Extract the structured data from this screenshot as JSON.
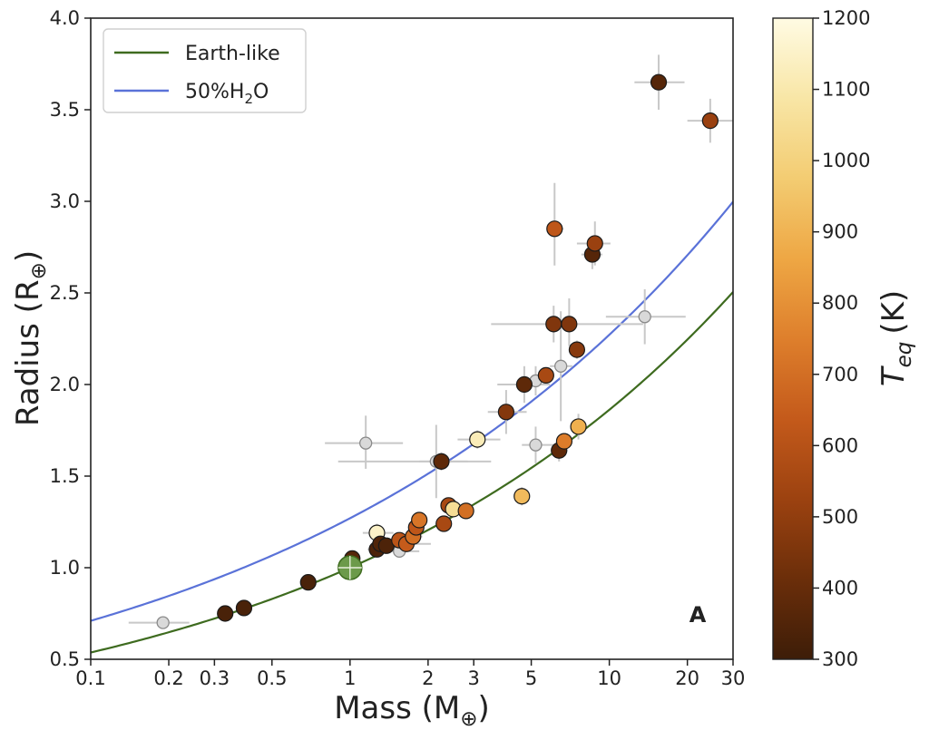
{
  "chart_data": {
    "type": "scatter",
    "panel_label": "A",
    "xlabel": {
      "main": "Mass (M",
      "sub": "⊕",
      "close": ")"
    },
    "ylabel": {
      "main": "Radius (R",
      "sub": "⊕",
      "close": ")"
    },
    "xscale": "log",
    "xlim": [
      0.1,
      30
    ],
    "ylim": [
      0.5,
      4.0
    ],
    "xticks": [
      {
        "value": 0.1,
        "label": "0.1"
      },
      {
        "value": 0.2,
        "label": "0.2"
      },
      {
        "value": 0.3,
        "label": "0.3"
      },
      {
        "value": 0.5,
        "label": "0.5"
      },
      {
        "value": 1,
        "label": "1"
      },
      {
        "value": 2,
        "label": "2"
      },
      {
        "value": 3,
        "label": "3"
      },
      {
        "value": 5,
        "label": "5"
      },
      {
        "value": 10,
        "label": "10"
      },
      {
        "value": 20,
        "label": "20"
      },
      {
        "value": 30,
        "label": "30"
      }
    ],
    "yticks": [
      {
        "value": 0.5,
        "label": "0.5"
      },
      {
        "value": 1.0,
        "label": "1.0"
      },
      {
        "value": 1.5,
        "label": "1.5"
      },
      {
        "value": 2.0,
        "label": "2.0"
      },
      {
        "value": 2.5,
        "label": "2.5"
      },
      {
        "value": 3.0,
        "label": "3.0"
      },
      {
        "value": 3.5,
        "label": "3.5"
      },
      {
        "value": 4.0,
        "label": "4.0"
      }
    ],
    "legend_position": "top-left",
    "models": [
      {
        "name": "Earth-like",
        "label_parts": [
          "Earth-like"
        ],
        "color": "#3e6b1f",
        "coef": 1.0,
        "exp": 0.27
      },
      {
        "name": "50%H2O",
        "label_parts": [
          "50%H",
          "2",
          "O"
        ],
        "color": "#5a72d8",
        "coef": 1.27,
        "exp": 0.2525
      }
    ],
    "colorbar": {
      "label_main": "T",
      "label_sub": "eq",
      "label_unit": "(K)",
      "min": 300,
      "max": 1200,
      "ticks": [
        {
          "value": 300,
          "label": "300"
        },
        {
          "value": 400,
          "label": "400"
        },
        {
          "value": 500,
          "label": "500"
        },
        {
          "value": 600,
          "label": "600"
        },
        {
          "value": 700,
          "label": "700"
        },
        {
          "value": 800,
          "label": "800"
        },
        {
          "value": 900,
          "label": "900"
        },
        {
          "value": 1000,
          "label": "1000"
        },
        {
          "value": 1100,
          "label": "1100"
        },
        {
          "value": 1200,
          "label": "1200"
        }
      ],
      "stops": [
        "#3d1d08",
        "#6b2e0a",
        "#9c4210",
        "#c45a1b",
        "#de7f2c",
        "#eea744",
        "#f3cc72",
        "#f8e6a6",
        "#fffbe3"
      ]
    },
    "earth": {
      "x": 1.0,
      "y": 1.0,
      "color": "#6c9a4a"
    },
    "points": [
      {
        "x": 0.19,
        "y": 0.7,
        "teq": null,
        "xerr": [
          0.05,
          0.05
        ],
        "yerr": [
          0.03,
          0.03
        ]
      },
      {
        "x": 0.33,
        "y": 0.75,
        "teq": 330,
        "xerr": [
          0.02,
          0.02
        ],
        "yerr": [
          0.02,
          0.02
        ]
      },
      {
        "x": 0.39,
        "y": 0.78,
        "teq": 330
      },
      {
        "x": 0.69,
        "y": 0.92,
        "teq": 330
      },
      {
        "x": 1.02,
        "y": 1.05,
        "teq": 360
      },
      {
        "x": 1.15,
        "y": 1.68,
        "teq": null,
        "xerr": [
          0.35,
          0.45
        ],
        "yerr": [
          0.14,
          0.15
        ]
      },
      {
        "x": 1.27,
        "y": 1.19,
        "teq": 1150,
        "xerr": [
          0.15,
          0.2
        ],
        "yerr": [
          0.05,
          0.05
        ]
      },
      {
        "x": 1.27,
        "y": 1.1,
        "teq": 340,
        "xerr": [
          0.1,
          0.15
        ],
        "yerr": [
          0.03,
          0.03
        ]
      },
      {
        "x": 1.31,
        "y": 1.13,
        "teq": 350,
        "xerr": [
          0.1,
          0.1
        ],
        "yerr": [
          0.03,
          0.03
        ]
      },
      {
        "x": 1.38,
        "y": 1.12,
        "teq": 340
      },
      {
        "x": 1.55,
        "y": 1.09,
        "teq": null,
        "xerr": [
          0.2,
          0.3
        ],
        "yerr": [
          0.03,
          0.03
        ]
      },
      {
        "x": 1.55,
        "y": 1.15,
        "teq": 610
      },
      {
        "x": 1.65,
        "y": 1.13,
        "teq": 640,
        "xerr": [
          0.3,
          0.4
        ],
        "yerr": [
          0.04,
          0.04
        ]
      },
      {
        "x": 1.75,
        "y": 1.17,
        "teq": 700,
        "xerr": [
          0.15,
          0.15
        ],
        "yerr": [
          0.03,
          0.03
        ]
      },
      {
        "x": 1.8,
        "y": 1.22,
        "teq": 620
      },
      {
        "x": 1.85,
        "y": 1.26,
        "teq": 720
      },
      {
        "x": 2.15,
        "y": 1.58,
        "teq": null,
        "xerr": [
          1.25,
          1.35
        ],
        "yerr": [
          0.2,
          0.2
        ]
      },
      {
        "x": 2.25,
        "y": 1.58,
        "teq": 380,
        "xerr": [
          0.4,
          0.6
        ],
        "yerr": [
          0.05,
          0.05
        ]
      },
      {
        "x": 2.3,
        "y": 1.24,
        "teq": 560
      },
      {
        "x": 2.4,
        "y": 1.34,
        "teq": 560
      },
      {
        "x": 2.5,
        "y": 1.32,
        "teq": 1050
      },
      {
        "x": 2.8,
        "y": 1.31,
        "teq": 700
      },
      {
        "x": 3.1,
        "y": 1.7,
        "teq": 1120,
        "xerr": [
          0.5,
          0.7
        ],
        "yerr": [
          0.05,
          0.05
        ]
      },
      {
        "x": 4.0,
        "y": 1.85,
        "teq": 470,
        "xerr": [
          0.6,
          0.8
        ],
        "yerr": [
          0.12,
          0.12
        ]
      },
      {
        "x": 4.6,
        "y": 1.39,
        "teq": 920,
        "xerr": [
          0.3,
          0.3
        ],
        "yerr": [
          0.05,
          0.05
        ]
      },
      {
        "x": 4.7,
        "y": 2.0,
        "teq": 380,
        "xerr": [
          1.0,
          1.2
        ],
        "yerr": [
          0.1,
          0.1
        ]
      },
      {
        "x": 5.2,
        "y": 1.67,
        "teq": null,
        "xerr": [
          0.6,
          1.0
        ],
        "yerr": [
          0.1,
          0.1
        ]
      },
      {
        "x": 5.2,
        "y": 2.02,
        "teq": null,
        "xerr": [
          0.5,
          0.5
        ],
        "yerr": [
          0.08,
          0.08
        ]
      },
      {
        "x": 5.7,
        "y": 2.05,
        "teq": 560
      },
      {
        "x": 6.15,
        "y": 2.85,
        "teq": 620,
        "xerr": [
          0.4,
          0.5
        ],
        "yerr": [
          0.2,
          0.25
        ]
      },
      {
        "x": 6.1,
        "y": 2.33,
        "teq": 460,
        "xerr": [
          2.6,
          7.4
        ],
        "yerr": [
          0.1,
          0.1
        ]
      },
      {
        "x": 6.4,
        "y": 1.64,
        "teq": 380,
        "xerr": [
          0.4,
          0.5
        ],
        "yerr": [
          0.06,
          0.06
        ]
      },
      {
        "x": 6.5,
        "y": 2.1,
        "teq": null,
        "xerr": [
          0.6,
          0.7
        ],
        "yerr": [
          0.3,
          0.3
        ]
      },
      {
        "x": 6.7,
        "y": 1.69,
        "teq": 740
      },
      {
        "x": 7.0,
        "y": 2.33,
        "teq": 460,
        "xerr": [
          0.6,
          0.6
        ],
        "yerr": [
          0.12,
          0.14
        ]
      },
      {
        "x": 7.5,
        "y": 2.19,
        "teq": 480,
        "xerr": [
          0.3,
          0.3
        ],
        "yerr": [
          0.05,
          0.05
        ]
      },
      {
        "x": 7.6,
        "y": 1.77,
        "teq": 890,
        "xerr": [
          0.5,
          0.5
        ],
        "yerr": [
          0.07,
          0.07
        ]
      },
      {
        "x": 8.6,
        "y": 2.71,
        "teq": 360,
        "xerr": [
          0.8,
          0.8
        ],
        "yerr": [
          0.08,
          0.08
        ]
      },
      {
        "x": 8.8,
        "y": 2.77,
        "teq": 520,
        "xerr": [
          1.3,
          1.3
        ],
        "yerr": [
          0.12,
          0.12
        ]
      },
      {
        "x": 13.7,
        "y": 2.37,
        "teq": null,
        "xerr": [
          4.0,
          6.0
        ],
        "yerr": [
          0.15,
          0.15
        ]
      },
      {
        "x": 15.5,
        "y": 3.65,
        "teq": 360,
        "xerr": [
          3.0,
          4.0
        ],
        "yerr": [
          0.15,
          0.15
        ]
      },
      {
        "x": 24.5,
        "y": 3.44,
        "teq": 520,
        "xerr": [
          4.5,
          6.0
        ],
        "yerr": [
          0.12,
          0.12
        ]
      }
    ],
    "null_color": "#d9d9d9"
  }
}
